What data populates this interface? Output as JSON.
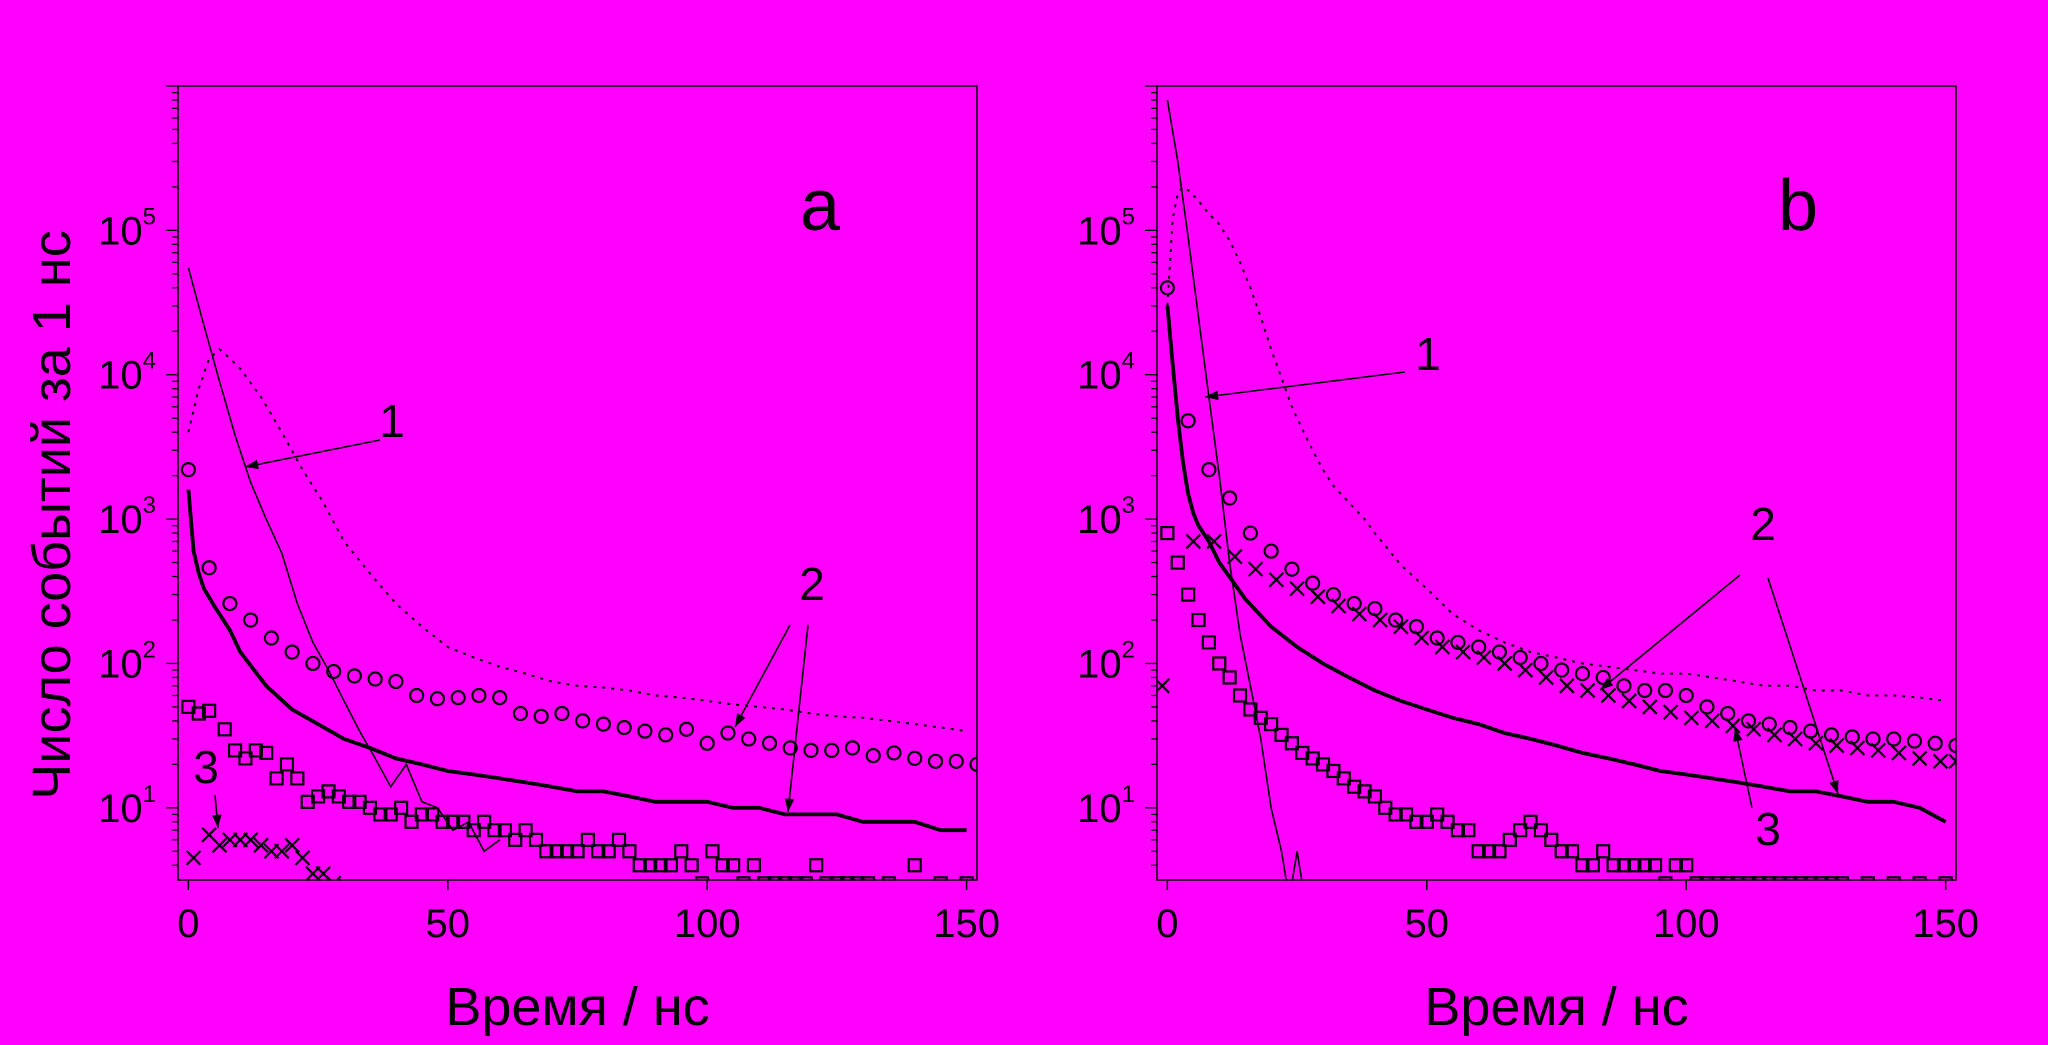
{
  "figure": {
    "ylabel": "Число событий за 1 нс",
    "background": "#ff00ff",
    "ink": "#000000"
  },
  "chart_data": [
    {
      "type": "line",
      "panel": "a",
      "xlabel": "Время / нс",
      "ylabel": "Число событий за 1 нс",
      "xlim": [
        -2,
        152
      ],
      "ylim_log10": [
        0.5,
        6.0
      ],
      "yscale": "log",
      "xticks": [
        0,
        50,
        100,
        150
      ],
      "yticks": [
        {
          "base": "10",
          "exp": "1"
        },
        {
          "base": "10",
          "exp": "2"
        },
        {
          "base": "10",
          "exp": "3"
        },
        {
          "base": "10",
          "exp": "4"
        },
        {
          "base": "10",
          "exp": "5"
        }
      ],
      "series": [
        {
          "style": "thin",
          "x": [
            0,
            3,
            6,
            9,
            12,
            15,
            18,
            21,
            24,
            27,
            30,
            33,
            36,
            39,
            42,
            45,
            48,
            51,
            54,
            57,
            60
          ],
          "y": [
            55000,
            22000,
            9000,
            3800,
            1800,
            1000,
            580,
            260,
            140,
            90,
            55,
            34,
            22,
            14,
            20,
            11,
            10,
            7,
            8,
            5,
            6
          ]
        },
        {
          "style": "dotted",
          "x": [
            0,
            2,
            4,
            6,
            8,
            10,
            14,
            18,
            22,
            26,
            30,
            35,
            40,
            45,
            50,
            55,
            60,
            65,
            70,
            75,
            80,
            85,
            90,
            95,
            100,
            105,
            110,
            115,
            120,
            125,
            130,
            135,
            140,
            145,
            150
          ],
          "y": [
            4000,
            8000,
            13000,
            15000,
            13000,
            11000,
            7000,
            4000,
            2200,
            1300,
            700,
            420,
            260,
            180,
            130,
            110,
            95,
            85,
            75,
            70,
            68,
            65,
            60,
            58,
            55,
            52,
            50,
            48,
            45,
            43,
            42,
            40,
            38,
            36,
            34
          ]
        },
        {
          "style": "thick",
          "x": [
            0,
            1,
            2,
            3,
            5,
            8,
            10,
            15,
            20,
            25,
            30,
            35,
            40,
            45,
            50,
            55,
            60,
            65,
            70,
            75,
            80,
            85,
            90,
            95,
            100,
            105,
            110,
            115,
            120,
            125,
            130,
            135,
            140,
            145,
            150
          ],
          "y": [
            1600,
            600,
            420,
            330,
            250,
            170,
            120,
            70,
            48,
            38,
            30,
            26,
            22,
            20,
            18,
            17,
            16,
            15,
            14,
            13,
            13,
            12,
            11,
            11,
            11,
            10,
            10,
            9,
            9,
            9,
            8,
            8,
            8,
            7,
            7
          ]
        },
        {
          "style": "circle",
          "x": [
            0,
            4,
            8,
            12,
            16,
            20,
            24,
            28,
            32,
            36,
            40,
            44,
            48,
            52,
            56,
            60,
            64,
            68,
            72,
            76,
            80,
            84,
            88,
            92,
            96,
            100,
            104,
            108,
            112,
            116,
            120,
            124,
            128,
            132,
            136,
            140,
            144,
            148,
            152
          ],
          "y": [
            2200,
            460,
            260,
            200,
            150,
            120,
            100,
            88,
            82,
            78,
            75,
            60,
            57,
            58,
            60,
            58,
            45,
            43,
            45,
            40,
            38,
            36,
            34,
            32,
            35,
            28,
            33,
            30,
            28,
            26,
            25,
            25,
            26,
            23,
            24,
            22,
            21,
            21,
            20
          ]
        },
        {
          "style": "square",
          "x": [
            0,
            2,
            4,
            7,
            9,
            11,
            13,
            15,
            17,
            19,
            21,
            23,
            25,
            27,
            29,
            31,
            33,
            35,
            37,
            39,
            41,
            43,
            45,
            47,
            49,
            51,
            53,
            55,
            57,
            59,
            61,
            63,
            65,
            67,
            69,
            71,
            73,
            75,
            77,
            79,
            81,
            83,
            85,
            87,
            89,
            91,
            93,
            95,
            97,
            99,
            101,
            103,
            105,
            107,
            109,
            111,
            113,
            115,
            117,
            119,
            121,
            123,
            125,
            127,
            129,
            131,
            135,
            140,
            145,
            150
          ],
          "y": [
            50,
            45,
            47,
            35,
            25,
            22,
            25,
            24,
            16,
            20,
            16,
            11,
            12,
            13,
            12,
            11,
            11,
            10,
            9,
            9,
            10,
            8,
            9,
            9,
            8,
            8,
            8,
            7,
            8,
            7,
            7,
            6,
            7,
            6,
            5,
            5,
            5,
            5,
            6,
            5,
            5,
            6,
            5,
            4,
            4,
            4,
            4,
            5,
            4,
            3,
            5,
            4,
            4,
            3,
            4,
            3,
            3,
            3,
            3,
            3,
            4,
            3,
            3,
            3,
            3,
            3,
            3,
            4,
            3,
            3
          ]
        },
        {
          "style": "cross",
          "x": [
            1,
            4,
            6,
            8,
            10,
            12,
            14,
            16,
            18,
            20,
            22,
            24,
            26,
            28
          ],
          "y": [
            4.5,
            6.5,
            5.5,
            6,
            6,
            6,
            5.5,
            5,
            5,
            5.5,
            4.5,
            3.5,
            3.5,
            3
          ]
        }
      ],
      "labels": [
        {
          "text": "a",
          "role": "panel"
        },
        {
          "text": "1",
          "role": "annotation"
        },
        {
          "text": "2",
          "role": "annotation"
        },
        {
          "text": "3",
          "role": "annotation"
        }
      ]
    },
    {
      "type": "line",
      "panel": "b",
      "xlabel": "Время / нс",
      "ylabel": "Число событий за 1 нс",
      "xlim": [
        -2,
        152
      ],
      "ylim_log10": [
        0.5,
        6.0
      ],
      "yscale": "log",
      "xticks": [
        0,
        50,
        100,
        150
      ],
      "yticks": [
        {
          "base": "10",
          "exp": "1"
        },
        {
          "base": "10",
          "exp": "2"
        },
        {
          "base": "10",
          "exp": "3"
        },
        {
          "base": "10",
          "exp": "4"
        },
        {
          "base": "10",
          "exp": "5"
        }
      ],
      "series": [
        {
          "style": "thin",
          "x": [
            0,
            2,
            4,
            6,
            8,
            10,
            12,
            14,
            16,
            18,
            20,
            22,
            23,
            24,
            25,
            26
          ],
          "y": [
            800000,
            300000,
            90000,
            25000,
            7000,
            2000,
            500,
            160,
            70,
            30,
            10,
            5,
            3,
            3,
            5,
            3
          ]
        },
        {
          "style": "dotted",
          "x": [
            0,
            1,
            2,
            3,
            4,
            6,
            8,
            10,
            12,
            14,
            16,
            18,
            20,
            22,
            24,
            26,
            28,
            30,
            32,
            35,
            38,
            40,
            45,
            50,
            55,
            60,
            65,
            70,
            75,
            80,
            85,
            90,
            95,
            100,
            105,
            110,
            115,
            120,
            125,
            130,
            135,
            140,
            145,
            150
          ],
          "y": [
            30000,
            120000,
            180000,
            200000,
            190000,
            160000,
            130000,
            110000,
            85000,
            60000,
            40000,
            25000,
            15000,
            9500,
            6000,
            4200,
            3000,
            2200,
            1700,
            1300,
            1000,
            800,
            480,
            330,
            220,
            170,
            140,
            120,
            110,
            100,
            95,
            90,
            85,
            85,
            80,
            75,
            70,
            70,
            65,
            65,
            60,
            60,
            58,
            55
          ]
        },
        {
          "style": "thick",
          "x": [
            0,
            1,
            2,
            3,
            4,
            5,
            6,
            8,
            10,
            15,
            20,
            25,
            30,
            35,
            40,
            45,
            50,
            55,
            60,
            65,
            70,
            75,
            80,
            85,
            90,
            95,
            100,
            105,
            110,
            115,
            120,
            125,
            130,
            135,
            140,
            145,
            150
          ],
          "y": [
            30000,
            12000,
            5000,
            2500,
            1500,
            1100,
            900,
            700,
            500,
            280,
            180,
            130,
            100,
            80,
            65,
            55,
            48,
            42,
            38,
            33,
            30,
            27,
            24,
            22,
            20,
            18,
            17,
            16,
            15,
            14,
            13,
            13,
            12,
            11,
            11,
            10,
            8
          ]
        },
        {
          "style": "circle",
          "x": [
            0,
            4,
            8,
            12,
            16,
            20,
            24,
            28,
            32,
            36,
            40,
            44,
            48,
            52,
            56,
            60,
            64,
            68,
            72,
            76,
            80,
            84,
            88,
            92,
            96,
            100,
            104,
            108,
            112,
            116,
            120,
            124,
            128,
            132,
            136,
            140,
            144,
            148,
            152
          ],
          "y": [
            40000,
            4800,
            2200,
            1400,
            800,
            600,
            450,
            360,
            300,
            260,
            240,
            200,
            180,
            150,
            140,
            130,
            120,
            110,
            100,
            90,
            85,
            80,
            70,
            65,
            65,
            60,
            50,
            45,
            40,
            38,
            36,
            34,
            32,
            31,
            30,
            30,
            29,
            28,
            27
          ]
        },
        {
          "style": "cross",
          "x": [
            -1,
            5,
            9,
            13,
            17,
            21,
            25,
            29,
            33,
            37,
            41,
            45,
            49,
            53,
            57,
            61,
            65,
            69,
            73,
            77,
            81,
            85,
            89,
            93,
            97,
            101,
            105,
            109,
            113,
            117,
            121,
            125,
            129,
            133,
            137,
            141,
            145,
            149,
            152
          ],
          "y": [
            70,
            700,
            700,
            550,
            450,
            380,
            330,
            290,
            250,
            220,
            200,
            180,
            150,
            130,
            120,
            110,
            100,
            90,
            80,
            70,
            65,
            60,
            55,
            50,
            46,
            42,
            40,
            37,
            35,
            32,
            30,
            28,
            27,
            26,
            25,
            24,
            22,
            21,
            21
          ]
        },
        {
          "style": "square",
          "x": [
            0,
            2,
            4,
            6,
            8,
            10,
            12,
            14,
            16,
            18,
            20,
            22,
            24,
            26,
            28,
            30,
            32,
            34,
            36,
            38,
            40,
            42,
            44,
            46,
            48,
            50,
            52,
            54,
            56,
            58,
            60,
            62,
            64,
            66,
            68,
            70,
            72,
            74,
            76,
            78,
            80,
            82,
            84,
            86,
            88,
            90,
            92,
            94,
            96,
            98,
            100,
            102,
            104,
            106,
            108,
            110,
            112,
            114,
            116,
            118,
            120,
            122,
            124,
            126,
            128,
            130,
            135,
            140,
            145,
            150
          ],
          "y": [
            800,
            500,
            300,
            200,
            140,
            100,
            80,
            60,
            48,
            42,
            38,
            32,
            28,
            24,
            22,
            20,
            18,
            16,
            14,
            13,
            12,
            10,
            9,
            9,
            8,
            8,
            9,
            8,
            7,
            7,
            5,
            5,
            5,
            6,
            7,
            8,
            7,
            6,
            5,
            5,
            4,
            4,
            5,
            4,
            4,
            4,
            4,
            4,
            3,
            4,
            4,
            3,
            3,
            3,
            3,
            3,
            3,
            3,
            3,
            3,
            3,
            3,
            3,
            3,
            3,
            3,
            3,
            3,
            3,
            3
          ]
        }
      ],
      "labels": [
        {
          "text": "b",
          "role": "panel"
        },
        {
          "text": "1",
          "role": "annotation"
        },
        {
          "text": "2",
          "role": "annotation"
        },
        {
          "text": "3",
          "role": "annotation"
        }
      ]
    }
  ]
}
